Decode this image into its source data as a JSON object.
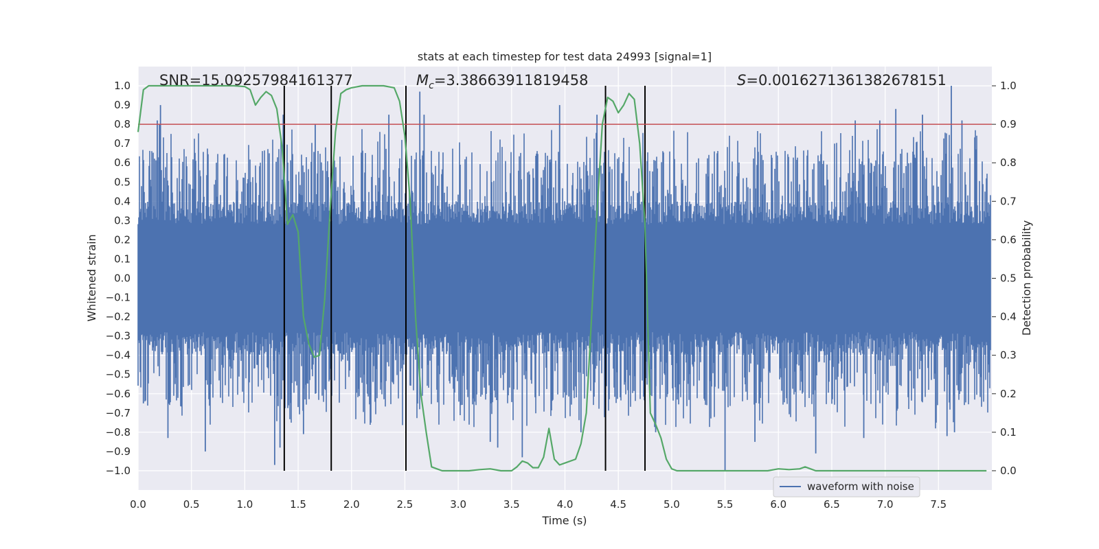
{
  "chart_data": {
    "type": "line",
    "title": "stats at each timestep for test data 24993 [signal=1]",
    "xlabel": "Time (s)",
    "ylabel_left": "Whitened strain",
    "ylabel_right": "Detection probability",
    "xlim": [
      0.0,
      8.0
    ],
    "ylim_left": [
      -1.1,
      1.1
    ],
    "ylim_right": [
      -0.05,
      1.05
    ],
    "xticks": [
      "0.0",
      "0.5",
      "1.0",
      "1.5",
      "2.0",
      "2.5",
      "3.0",
      "3.5",
      "4.0",
      "4.5",
      "5.0",
      "5.5",
      "6.0",
      "6.5",
      "7.0",
      "7.5"
    ],
    "xtick_values": [
      0,
      0.5,
      1,
      1.5,
      2,
      2.5,
      3,
      3.5,
      4,
      4.5,
      5,
      5.5,
      6,
      6.5,
      7,
      7.5
    ],
    "yticks_left": [
      "1.0",
      "0.9",
      "0.8",
      "0.7",
      "0.6",
      "0.5",
      "0.4",
      "0.3",
      "0.2",
      "0.1",
      "0.0",
      "−0.1",
      "−0.2",
      "−0.3",
      "−0.4",
      "−0.5",
      "−0.6",
      "−0.7",
      "−0.8",
      "−0.9",
      "−1.0"
    ],
    "ytick_values_left": [
      1.0,
      0.9,
      0.8,
      0.7,
      0.6,
      0.5,
      0.4,
      0.3,
      0.2,
      0.1,
      0.0,
      -0.1,
      -0.2,
      -0.3,
      -0.4,
      -0.5,
      -0.6,
      -0.7,
      -0.8,
      -0.9,
      -1.0
    ],
    "yticks_right": [
      "1.0",
      "0.9",
      "0.8",
      "0.7",
      "0.6",
      "0.5",
      "0.4",
      "0.3",
      "0.2",
      "0.1",
      "0.0"
    ],
    "ytick_values_right": [
      1.0,
      0.9,
      0.8,
      0.7,
      0.6,
      0.5,
      0.4,
      0.3,
      0.2,
      0.1,
      0.0
    ],
    "grid": true,
    "legend": {
      "position": "bottom-right",
      "entries": [
        "waveform with noise"
      ]
    },
    "annotations": {
      "snr": "SNR=15.09257984161377",
      "mc_symbol": "M",
      "mc_subscript": "c",
      "mc_value": "=3.38663911819458",
      "s_symbol": "S",
      "s_value": "=0.0016271361382678151"
    },
    "threshold_line": {
      "axis": "right",
      "value": 0.9,
      "color": "#c44e52"
    },
    "vertical_lines": [
      1.37,
      1.81,
      2.51,
      4.38,
      4.75
    ],
    "colors": {
      "waveform": "#4c72b0",
      "probability": "#55a868",
      "threshold": "#c44e52",
      "background": "#eaeaf2",
      "vlines": "#000000"
    },
    "waveform": {
      "name": "waveform with noise",
      "x_range": [
        0.0,
        7.99
      ],
      "envelope_typical": [
        -0.5,
        0.5
      ],
      "spikes": [
        {
          "x": 0.18,
          "y": 0.82
        },
        {
          "x": 0.2,
          "y": 0.8
        },
        {
          "x": 0.21,
          "y": 0.9
        },
        {
          "x": 0.28,
          "y": -0.83
        },
        {
          "x": 0.63,
          "y": -0.9
        },
        {
          "x": 0.05,
          "y": -0.65
        },
        {
          "x": 1.28,
          "y": -0.97
        },
        {
          "x": 1.33,
          "y": -0.88
        },
        {
          "x": 1.36,
          "y": 0.85
        },
        {
          "x": 1.66,
          "y": 0.8
        },
        {
          "x": 1.55,
          "y": -0.81
        },
        {
          "x": 2.35,
          "y": 0.85
        },
        {
          "x": 2.64,
          "y": 0.97
        },
        {
          "x": 2.68,
          "y": 0.85
        },
        {
          "x": 3.3,
          "y": -0.85
        },
        {
          "x": 3.37,
          "y": -0.88
        },
        {
          "x": 3.6,
          "y": -0.93
        },
        {
          "x": 3.95,
          "y": 0.9
        },
        {
          "x": 4.15,
          "y": -0.8
        },
        {
          "x": 4.3,
          "y": 0.85
        },
        {
          "x": 4.85,
          "y": -0.8
        },
        {
          "x": 5.5,
          "y": -1.0
        },
        {
          "x": 5.78,
          "y": -0.85
        },
        {
          "x": 6.35,
          "y": -0.91
        },
        {
          "x": 6.72,
          "y": 0.82
        },
        {
          "x": 6.8,
          "y": -0.83
        },
        {
          "x": 6.95,
          "y": 0.82
        },
        {
          "x": 7.1,
          "y": 0.88
        },
        {
          "x": 7.35,
          "y": 0.85
        },
        {
          "x": 7.58,
          "y": -0.82
        },
        {
          "x": 7.62,
          "y": 1.0
        },
        {
          "x": 7.72,
          "y": 0.82
        },
        {
          "x": 7.65,
          "y": -0.8
        }
      ]
    },
    "probability": {
      "name": "Detection probability",
      "x": [
        0.0,
        0.05,
        0.1,
        0.15,
        0.2,
        0.3,
        0.5,
        0.7,
        0.9,
        1.0,
        1.05,
        1.1,
        1.15,
        1.2,
        1.25,
        1.3,
        1.35,
        1.4,
        1.45,
        1.5,
        1.55,
        1.6,
        1.65,
        1.7,
        1.75,
        1.8,
        1.85,
        1.9,
        1.95,
        2.0,
        2.1,
        2.2,
        2.3,
        2.4,
        2.45,
        2.5,
        2.55,
        2.6,
        2.65,
        2.7,
        2.75,
        2.8,
        2.85,
        2.9,
        3.0,
        3.1,
        3.2,
        3.3,
        3.4,
        3.5,
        3.55,
        3.6,
        3.65,
        3.7,
        3.75,
        3.8,
        3.85,
        3.9,
        3.95,
        4.0,
        4.1,
        4.15,
        4.2,
        4.25,
        4.3,
        4.35,
        4.4,
        4.45,
        4.5,
        4.55,
        4.6,
        4.65,
        4.7,
        4.75,
        4.8,
        4.85,
        4.9,
        4.95,
        5.0,
        5.05,
        5.1,
        5.2,
        5.3,
        5.4,
        5.5,
        5.6,
        5.8,
        5.9,
        6.0,
        6.1,
        6.2,
        6.25,
        6.3,
        6.35,
        6.4,
        6.5,
        6.6,
        6.8,
        7.0,
        7.2,
        7.4,
        7.6,
        7.8,
        7.95
      ],
      "y": [
        0.88,
        0.99,
        1.0,
        1.0,
        1.0,
        1.0,
        1.0,
        1.0,
        1.0,
        0.998,
        0.99,
        0.95,
        0.97,
        0.985,
        0.975,
        0.94,
        0.84,
        0.64,
        0.665,
        0.62,
        0.4,
        0.33,
        0.295,
        0.3,
        0.45,
        0.68,
        0.88,
        0.98,
        0.99,
        0.995,
        1.0,
        1.0,
        1.0,
        0.995,
        0.96,
        0.87,
        0.7,
        0.4,
        0.2,
        0.1,
        0.01,
        0.005,
        0.0,
        0.0,
        0.0,
        0.0,
        0.003,
        0.005,
        0.0,
        0.0,
        0.01,
        0.025,
        0.02,
        0.008,
        0.008,
        0.035,
        0.11,
        0.03,
        0.015,
        0.02,
        0.03,
        0.07,
        0.15,
        0.4,
        0.67,
        0.9,
        0.97,
        0.96,
        0.93,
        0.95,
        0.98,
        0.965,
        0.85,
        0.64,
        0.15,
        0.12,
        0.085,
        0.03,
        0.005,
        0.0,
        0.0,
        0.0,
        0.0,
        0.0,
        0.0,
        0.0,
        0.0,
        0.0,
        0.005,
        0.003,
        0.005,
        0.01,
        0.005,
        0.0,
        0.0,
        0.0,
        0.0,
        0.0,
        0.0,
        0.0,
        0.0,
        0.0,
        0.0,
        0.0
      ]
    }
  }
}
